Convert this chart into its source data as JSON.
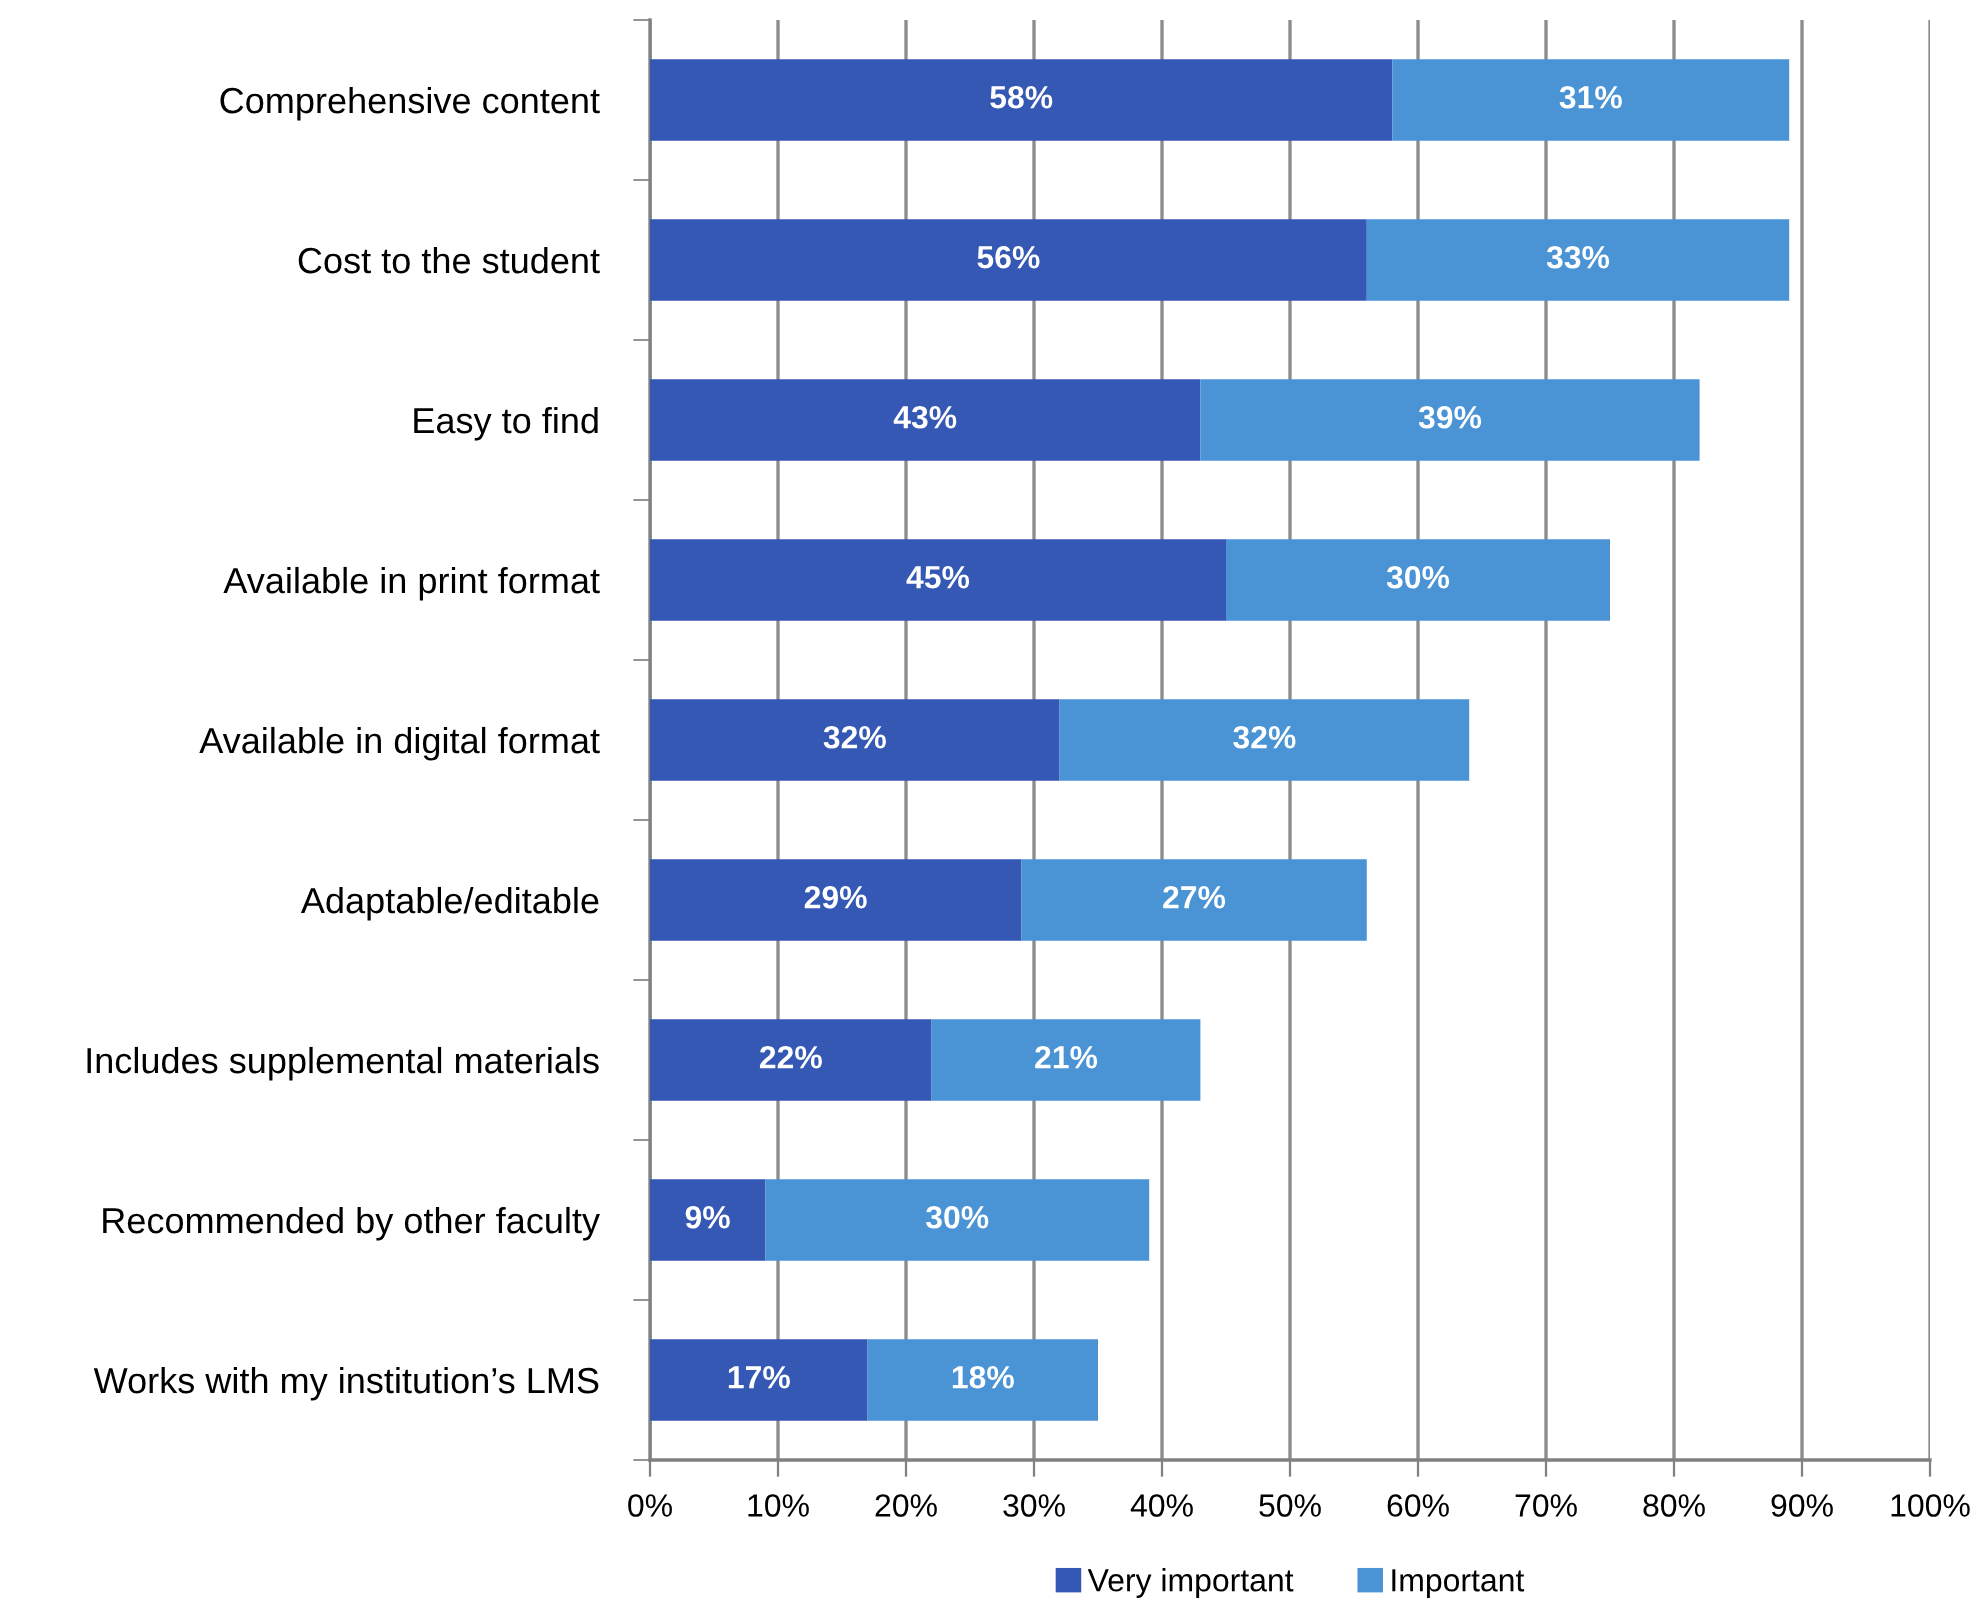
{
  "chart_data": {
    "type": "bar",
    "orientation": "horizontal",
    "stacked": true,
    "categories": [
      "Comprehensive content",
      "Cost to the student",
      "Easy to find",
      "Available in print format",
      "Available in digital format",
      "Adaptable/editable",
      "Includes supplemental materials",
      "Recommended by other faculty",
      "Works with my institution’s LMS"
    ],
    "series": [
      {
        "name": "Very important",
        "color": "#3558b4",
        "values": [
          58,
          56,
          43,
          45,
          32,
          29,
          22,
          9,
          17
        ],
        "value_labels": [
          "58%",
          "56%",
          "43%",
          "45%",
          "32%",
          "29%",
          "22%",
          "9%",
          "17%"
        ]
      },
      {
        "name": "Important",
        "color": "#4a93d4",
        "values": [
          31,
          33,
          39,
          30,
          32,
          27,
          21,
          30,
          18
        ],
        "value_labels": [
          "31%",
          "33%",
          "39%",
          "30%",
          "32%",
          "27%",
          "21%",
          "30%",
          "18%"
        ]
      }
    ],
    "xlim": [
      0,
      100
    ],
    "xticks": [
      {
        "value": 0,
        "label": "0%"
      },
      {
        "value": 10,
        "label": "10%"
      },
      {
        "value": 20,
        "label": "20%"
      },
      {
        "value": 30,
        "label": "30%"
      },
      {
        "value": 40,
        "label": "40%"
      },
      {
        "value": 50,
        "label": "50%"
      },
      {
        "value": 60,
        "label": "60%"
      },
      {
        "value": 70,
        "label": "70%"
      },
      {
        "value": 80,
        "label": "80%"
      },
      {
        "value": 90,
        "label": "90%"
      },
      {
        "value": 100,
        "label": "100%"
      }
    ],
    "grid": "x",
    "legend": "bottom"
  }
}
